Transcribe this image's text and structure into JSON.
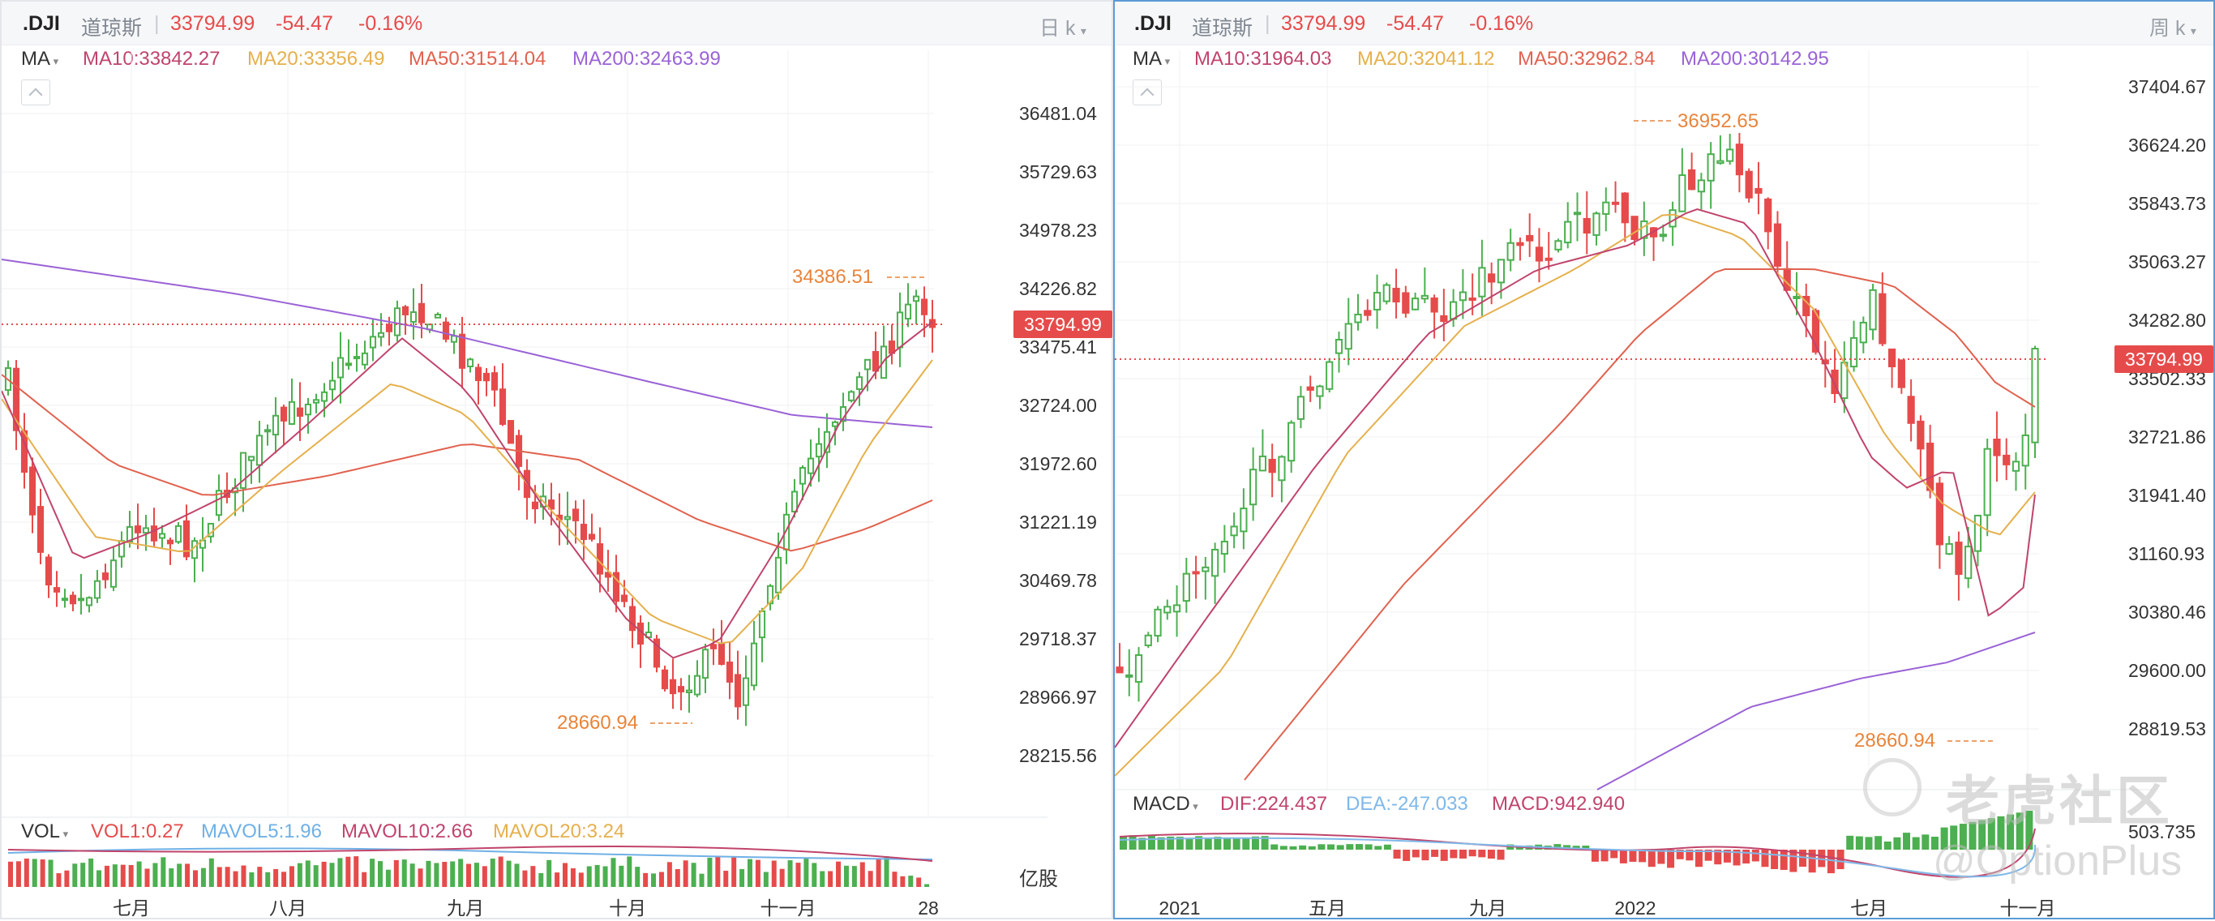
{
  "left": {
    "symbol": ".DJI",
    "name": "道琼斯",
    "separator": "|",
    "price": "33794.99",
    "change": "-54.47",
    "change_pct": "-0.16%",
    "period": "日 k",
    "ma_selector": "MA",
    "ma10": "MA10:33842.27",
    "ma20": "MA20:33356.49",
    "ma50": "MA50:31514.04",
    "ma200": "MA200:32463.99",
    "price_tag": "33794.99",
    "y_ticks": [
      "36481.04",
      "35729.63",
      "34978.23",
      "34226.82",
      "33475.41",
      "32724.00",
      "31972.60",
      "31221.19",
      "30469.78",
      "29718.37",
      "28966.97",
      "28215.56"
    ],
    "high_label": "34386.51",
    "low_label": "28660.94",
    "vol_selector": "VOL",
    "vol1": "VOL1:0.27",
    "mavol5": "MAVOL5:1.96",
    "mavol10": "MAVOL10:2.66",
    "mavol20": "MAVOL20:3.24",
    "vol_unit": "亿股",
    "x_labels": [
      "七月",
      "八月",
      "九月",
      "十月",
      "十一月",
      "28"
    ]
  },
  "right": {
    "symbol": ".DJI",
    "name": "道琼斯",
    "separator": "|",
    "price": "33794.99",
    "change": "-54.47",
    "change_pct": "-0.16%",
    "period": "周 k",
    "ma_selector": "MA",
    "ma10": "MA10:31964.03",
    "ma20": "MA20:32041.12",
    "ma50": "MA50:32962.84",
    "ma200": "MA200:30142.95",
    "price_tag": "33794.99",
    "y_ticks": [
      "37404.67",
      "36624.20",
      "35843.73",
      "35063.27",
      "34282.80",
      "33502.33",
      "32721.86",
      "31941.40",
      "31160.93",
      "30380.46",
      "29600.00",
      "28819.53"
    ],
    "high_label": "36952.65",
    "low_label": "28660.94",
    "macd_selector": "MACD",
    "dif": "DIF:224.437",
    "dea": "DEA:-247.033",
    "macd": "MACD:942.940",
    "macd_tick": "503.735",
    "x_labels": [
      "2021",
      "五月",
      "九月",
      "2022",
      "七月",
      "十一月"
    ]
  },
  "watermark": {
    "brand": "老虎社区",
    "handle": "@OptionPlus"
  },
  "colors": {
    "up": "#4caf50",
    "down": "#e64b4b",
    "ma10": "#c0446b",
    "ma20": "#e5b04d",
    "ma50": "#e0624f",
    "ma200": "#9a63d6",
    "annotation": "#e8843a",
    "mavol5": "#6fb0e6",
    "dea": "#7fb8e8"
  },
  "chart_data": [
    {
      "type": "candlestick",
      "title": ".DJI 日 k",
      "y_ticks": [
        36481.04,
        35729.63,
        34978.23,
        34226.82,
        33475.41,
        32724.0,
        31972.6,
        31221.19,
        30469.78,
        29718.37,
        28966.97,
        28215.56
      ],
      "x_labels": [
        "七月",
        "八月",
        "九月",
        "十月",
        "十一月",
        "28"
      ],
      "last_price": 33794.99,
      "period_high": 34386.51,
      "period_low": 28660.94,
      "series": [
        {
          "name": "MA10",
          "last": 33842.27
        },
        {
          "name": "MA20",
          "last": 33356.49
        },
        {
          "name": "MA50",
          "last": 31514.04
        },
        {
          "name": "MA200",
          "last": 32463.99
        },
        {
          "name": "VOL1",
          "last": 0.27
        },
        {
          "name": "MAVOL5",
          "last": 1.96
        },
        {
          "name": "MAVOL10",
          "last": 2.66
        },
        {
          "name": "MAVOL20",
          "last": 3.24
        }
      ]
    },
    {
      "type": "candlestick",
      "title": ".DJI 周 k",
      "y_ticks": [
        37404.67,
        36624.2,
        35843.73,
        35063.27,
        34282.8,
        33502.33,
        32721.86,
        31941.4,
        31160.93,
        30380.46,
        29600.0,
        28819.53
      ],
      "x_labels": [
        "2021",
        "五月",
        "九月",
        "2022",
        "七月",
        "十一月"
      ],
      "last_price": 33794.99,
      "period_high": 36952.65,
      "period_low": 28660.94,
      "series": [
        {
          "name": "MA10",
          "last": 31964.03
        },
        {
          "name": "MA20",
          "last": 32041.12
        },
        {
          "name": "MA50",
          "last": 32962.84
        },
        {
          "name": "MA200",
          "last": 30142.95
        },
        {
          "name": "DIF",
          "last": 224.437
        },
        {
          "name": "DEA",
          "last": -247.033
        },
        {
          "name": "MACD",
          "last": 942.94
        }
      ]
    }
  ]
}
